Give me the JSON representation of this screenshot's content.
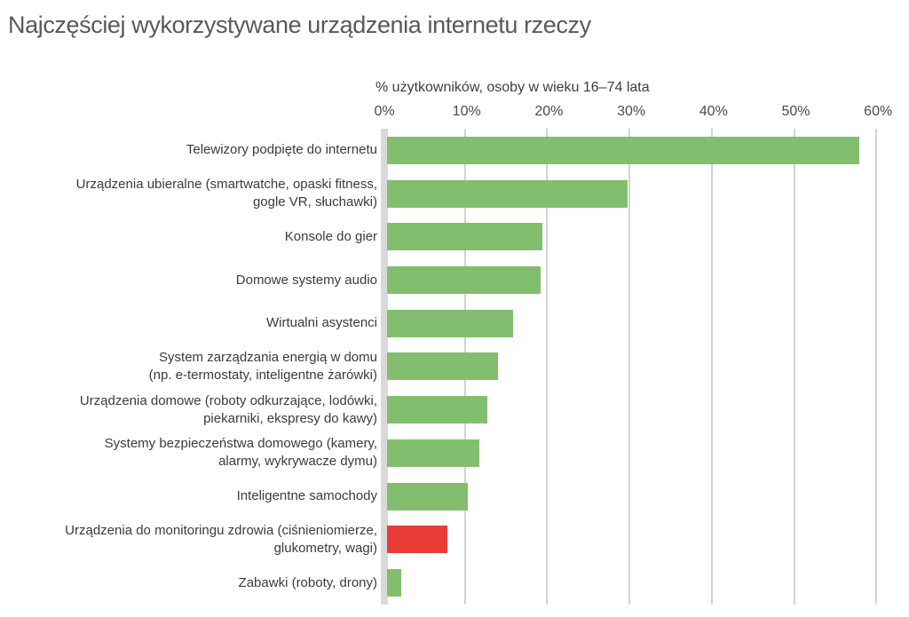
{
  "chart": {
    "title": "Najczęściej wykorzystywane urządzenia internetu rzeczy",
    "subtitle": "% użytkowników, osoby w wieku 16–74 lata"
  },
  "chart_data": {
    "type": "bar",
    "orientation": "horizontal",
    "title": "Najczęściej wykorzystywane urządzenia internetu rzeczy",
    "xlabel": "% użytkowników, osoby w wieku 16–74 lata",
    "ylabel": "",
    "xlim": [
      0,
      60
    ],
    "xticks": [
      "0%",
      "10%",
      "20%",
      "30%",
      "40%",
      "50%",
      "60%"
    ],
    "xtick_values": [
      0,
      10,
      20,
      30,
      40,
      50,
      60
    ],
    "grid": true,
    "legend": false,
    "bar_color_default": "#82be6e",
    "bar_color_highlight": "#e83c37",
    "highlighted_category": "Urządzenia do monitoringu zdrowia (ciśnieniomierze, glukometry, wagi)",
    "categories": [
      "Telewizory podpięte do internetu",
      "Urządzenia ubieralne (smartwatche, opaski fitness, gogle VR, słuchawki)",
      "Konsole do gier",
      "Domowe systemy audio",
      "Wirtualni asystenci",
      "System zarządzania energią w domu (np. e-termostaty, inteligentne żarówki)",
      "Urządzenia domowe (roboty odkurzające, lodówki, piekarniki, ekspresy do kawy)",
      "Systemy bezpieczeństwa domowego (kamery, alarmy, wykrywacze dymu)",
      "Inteligentne samochody",
      "Urządzenia do monitoringu zdrowia (ciśnieniomierze, glukometry, wagi)",
      "Zabawki (roboty, drony)"
    ],
    "label_lines": [
      [
        "Telewizory podpięte do internetu"
      ],
      [
        "Urządzenia ubieralne (smartwatche, opaski fitness,",
        "gogle VR, słuchawki)"
      ],
      [
        "Konsole do gier"
      ],
      [
        "Domowe systemy audio"
      ],
      [
        "Wirtualni asystenci"
      ],
      [
        "System zarządzania energią w domu",
        "(np. e-termostaty, inteligentne żarówki)"
      ],
      [
        "Urządzenia domowe (roboty odkurzające, lodówki,",
        "piekarniki, ekspresy do kawy)"
      ],
      [
        "Systemy bezpieczeństwa domowego (kamery,",
        "alarmy, wykrywacze dymu)"
      ],
      [
        "Inteligentne samochody"
      ],
      [
        "Urządzenia do monitoringu zdrowia (ciśnieniomierze,",
        "glukometry, wagi)"
      ],
      [
        "Zabawki (roboty, drony)"
      ]
    ],
    "values": [
      57.9,
      29.8,
      19.4,
      19.2,
      15.9,
      14.0,
      12.7,
      11.8,
      10.4,
      7.9,
      2.3
    ],
    "colors": [
      "#82be6e",
      "#82be6e",
      "#82be6e",
      "#82be6e",
      "#82be6e",
      "#82be6e",
      "#82be6e",
      "#82be6e",
      "#82be6e",
      "#e83c37",
      "#82be6e"
    ]
  }
}
